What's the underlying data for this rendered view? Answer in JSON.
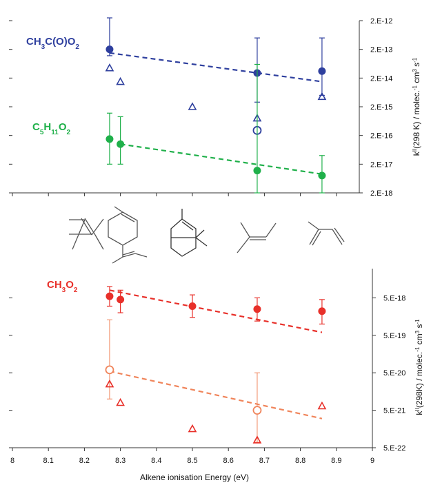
{
  "chart_data": [
    {
      "type": "scatter",
      "panel": "top",
      "xlim": [
        8,
        9
      ],
      "yscale": "log",
      "ylim": [
        2e-18,
        2e-12
      ],
      "ytick_labels": [
        "2.E-12",
        "2.E-13",
        "2.E-14",
        "2.E-15",
        "2.E-16",
        "2.E-17",
        "2.E-18"
      ],
      "ylabel": "k^II(298 K) / molec.^-1 cm^3 s^-1",
      "ylabel_parts": {
        "k": "k",
        "sup1": "II",
        "mid": "(298 K) / molec.",
        "sup2": "-1",
        "cm": " cm",
        "sup3": "3",
        "s": " s",
        "sup4": "-1"
      },
      "series": [
        {
          "name": "CH3C(O)O2",
          "label_parts": {
            "a": "CH",
            "s1": "3",
            "b": "C(O)O",
            "s2": "2"
          },
          "color": "#2e3f9e",
          "filled": {
            "x": [
              8.27,
              8.68,
              8.86
            ],
            "y": [
              2e-13,
              3e-14,
              3.5e-14
            ],
            "err_lo": [
              1.2e-13,
              2.9e-15,
              5e-15
            ],
            "err_hi": [
              2.5e-12,
              5e-13,
              5e-13
            ]
          },
          "triangles": {
            "x": [
              8.27,
              8.3,
              8.5,
              8.68,
              8.86
            ],
            "y": [
              4.5e-14,
              1.5e-14,
              2e-15,
              8e-16,
              4.5e-15
            ]
          },
          "open_circle": {
            "x": [
              8.68
            ],
            "y": [
              3e-16
            ]
          },
          "fit": {
            "x": [
              8.27,
              8.86
            ],
            "y": [
              1.5e-13,
              1.5e-14
            ]
          }
        },
        {
          "name": "C5H11O2",
          "label_parts": {
            "a": "C",
            "s1": "5",
            "b": "H",
            "s2": "11",
            "c": "O",
            "s3": "2"
          },
          "color": "#1fb04a",
          "filled": {
            "x": [
              8.27,
              8.3,
              8.68,
              8.86
            ],
            "y": [
              1.5e-16,
              1e-16,
              1.2e-17,
              8e-18
            ],
            "err_lo": [
              2e-17,
              2e-17,
              2e-18,
              2e-18
            ],
            "err_hi": [
              1.2e-15,
              9e-16,
              6e-14,
              4e-17
            ]
          },
          "fit": {
            "x": [
              8.3,
              8.86
            ],
            "y": [
              1e-16,
              9e-18
            ]
          }
        }
      ]
    },
    {
      "type": "scatter",
      "panel": "bottom",
      "xlim": [
        8,
        9
      ],
      "xticks": [
        8,
        8.1,
        8.2,
        8.3,
        8.4,
        8.5,
        8.6,
        8.7,
        8.8,
        8.9,
        9
      ],
      "xtick_labels": [
        "8",
        "8.1",
        "8.2",
        "8.3",
        "8.4",
        "8.5",
        "8.6",
        "8.7",
        "8.8",
        "8.9",
        "9"
      ],
      "xlabel": "Alkene ionisation Energy (eV)",
      "yscale": "log",
      "ylim": [
        5e-22,
        5e-17
      ],
      "ytick_labels": [
        "5.E-18",
        "5.E-19",
        "5.E-20",
        "5.E-21",
        "5.E-22"
      ],
      "ylabel": "k^II(298K) / molec.^-1 cm^3 s^-1",
      "ylabel_parts": {
        "k": "k",
        "sup1": "II",
        "mid": "(298K) / molec.",
        "sup2": "-1",
        "cm": " cm",
        "sup3": "3",
        "s": " s",
        "sup4": "-1"
      },
      "series": [
        {
          "name": "CH3O2",
          "label_parts": {
            "a": "CH",
            "s1": "3",
            "b": "O",
            "s2": "2"
          },
          "color": "#e8302a",
          "filled": {
            "x": [
              8.27,
              8.3,
              8.5,
              8.68,
              8.86
            ],
            "y": [
              5.5e-18,
              4.5e-18,
              3e-18,
              2.5e-18,
              2.2e-18
            ],
            "err_lo": [
              3e-18,
              2e-18,
              1.5e-18,
              1.2e-18,
              1e-18
            ],
            "err_hi": [
              1e-17,
              8e-18,
              6e-18,
              5e-18,
              4.5e-18
            ]
          },
          "fit": {
            "x": [
              8.27,
              8.86
            ],
            "y": [
              8e-18,
              6e-19
            ]
          }
        },
        {
          "name": "",
          "color": "#f0845a",
          "open_circle": {
            "x": [
              8.27,
              8.68
            ],
            "y": [
              6e-20,
              5e-21
            ]
          },
          "open_err_lo": [
            1e-20,
            7e-22
          ],
          "open_err_hi": [
            1.3e-18,
            5e-20
          ],
          "fit": {
            "x": [
              8.27,
              8.86
            ],
            "y": [
              5.5e-20,
              3e-21
            ]
          }
        },
        {
          "name": "",
          "color": "#e8302a",
          "triangles": {
            "x": [
              8.27,
              8.3,
              8.5,
              8.68,
              8.86
            ],
            "y": [
              2.5e-20,
              8e-21,
              1.6e-21,
              8e-22,
              6.5e-21
            ]
          }
        }
      ]
    }
  ]
}
